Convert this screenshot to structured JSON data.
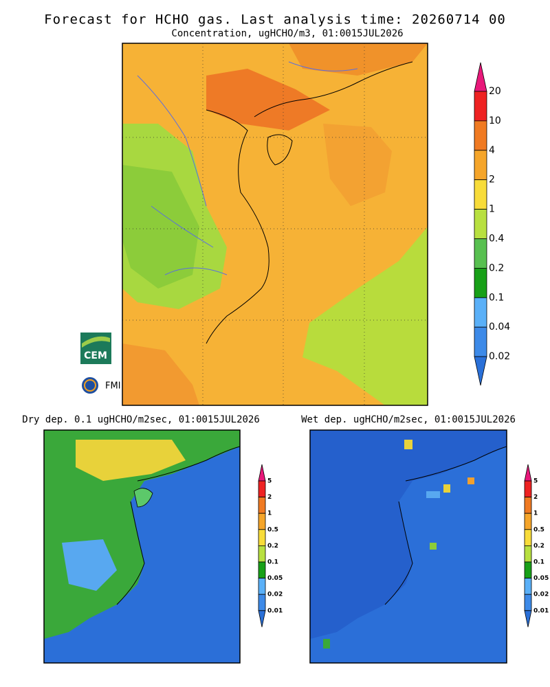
{
  "title": "Forecast for HCHO gas. Last analysis time: 20260714 00",
  "main": {
    "subtitle": "Concentration, ugHCHO/m3, 01:0015JUL2026",
    "colorbar": {
      "labels": [
        "20",
        "10",
        "4",
        "2",
        "1",
        "0.4",
        "0.2",
        "0.1",
        "0.04",
        "0.02"
      ],
      "colors": [
        "#ee2222",
        "#f07a22",
        "#f5a52a",
        "#f8dc3a",
        "#b8e040",
        "#58c050",
        "#18a018",
        "#5ab0f8",
        "#3d8ae8"
      ],
      "over_color": "#e8187a",
      "under_color": "#2a70d8"
    }
  },
  "dry": {
    "title": "Dry dep. 0.1 ugHCHO/m2sec, 01:0015JUL2026",
    "colorbar": {
      "labels": [
        "5",
        "2",
        "1",
        "0.5",
        "0.2",
        "0.1",
        "0.05",
        "0.02",
        "0.01"
      ],
      "colors": [
        "#ee2222",
        "#f07a22",
        "#f5a52a",
        "#f8dc3a",
        "#b8e040",
        "#18a018",
        "#5ab0f8",
        "#3d8ae8"
      ],
      "over_color": "#e8187a",
      "under_color": "#2a70d8"
    }
  },
  "wet": {
    "title": "Wet dep. ugHCHO/m2sec, 01:0015JUL2026",
    "colorbar": {
      "labels": [
        "5",
        "2",
        "1",
        "0.5",
        "0.2",
        "0.1",
        "0.05",
        "0.02",
        "0.01"
      ],
      "colors": [
        "#ee2222",
        "#f07a22",
        "#f5a52a",
        "#f8dc3a",
        "#b8e040",
        "#18a018",
        "#5ab0f8",
        "#3d8ae8"
      ],
      "over_color": "#e8187a",
      "under_color": "#2a70d8"
    }
  },
  "logos": [
    "CEM",
    "FMI"
  ]
}
